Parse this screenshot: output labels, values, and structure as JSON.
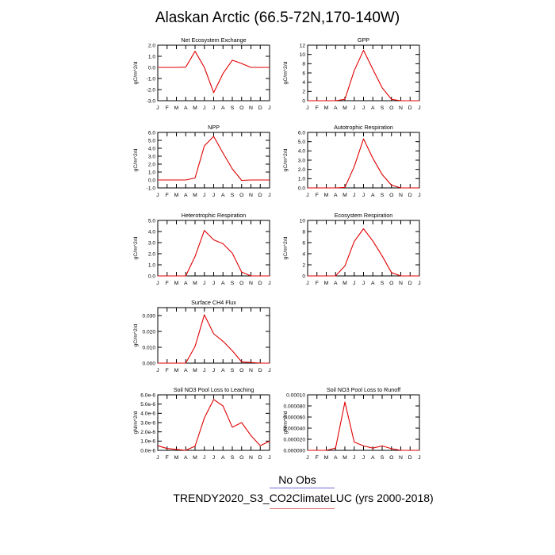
{
  "figure": {
    "title": "Alaskan Arctic (66.5-72N,170-140W)",
    "legend": {
      "obs_label": "No Obs",
      "model_label": "TRENDY2020_S3_CO2ClimateLUC (yrs 2000-2018)"
    }
  },
  "colors": {
    "series": "#e00000",
    "axis": "#000000"
  },
  "chart_data": [
    {
      "type": "line",
      "title": "Net Ecosystem Exchange",
      "ylabel": "gC/m^2/d",
      "x": [
        "J",
        "F",
        "M",
        "A",
        "M",
        "J",
        "J",
        "A",
        "S",
        "O",
        "N",
        "D",
        "J"
      ],
      "y": [
        0.0,
        0.0,
        0.0,
        0.02,
        1.45,
        0.0,
        -2.28,
        -0.55,
        0.65,
        0.35,
        0.0,
        0.0,
        0.0
      ],
      "ylim": [
        -3.0,
        2.0
      ],
      "yticks": [
        -3.0,
        -2.0,
        -1.0,
        0.0,
        1.0,
        2.0
      ],
      "ytick_labels": [
        "-3.0",
        "-2.0",
        "-1.0",
        "0.0",
        "1.0",
        "2.0"
      ]
    },
    {
      "type": "line",
      "title": "GPP",
      "ylabel": "gC/m^2/d",
      "x": [
        "J",
        "F",
        "M",
        "A",
        "M",
        "J",
        "J",
        "A",
        "S",
        "O",
        "N",
        "D",
        "J"
      ],
      "y": [
        0.0,
        0.0,
        0.0,
        0.0,
        0.3,
        6.5,
        10.9,
        6.8,
        2.8,
        0.3,
        0.0,
        0.0,
        0.0
      ],
      "ylim": [
        0,
        12
      ],
      "yticks": [
        0,
        2,
        4,
        6,
        8,
        10,
        12
      ],
      "ytick_labels": [
        "0",
        "2",
        "4",
        "6",
        "8",
        "10",
        "12"
      ]
    },
    {
      "type": "line",
      "title": "NPP",
      "ylabel": "gC/m^2/d",
      "x": [
        "J",
        "F",
        "M",
        "A",
        "M",
        "J",
        "J",
        "A",
        "S",
        "O",
        "N",
        "D",
        "J"
      ],
      "y": [
        0.0,
        0.0,
        0.0,
        0.0,
        0.25,
        4.3,
        5.5,
        3.4,
        1.4,
        -0.05,
        0.0,
        0.0,
        0.0
      ],
      "ylim": [
        -1.0,
        6.0
      ],
      "yticks": [
        -1.0,
        0.0,
        1.0,
        2.0,
        3.0,
        4.0,
        5.0,
        6.0
      ],
      "ytick_labels": [
        "-1.0",
        "0.0",
        "1.0",
        "2.0",
        "3.0",
        "4.0",
        "5.0",
        "6.0"
      ]
    },
    {
      "type": "line",
      "title": "Autotrophic Respiration",
      "ylabel": "gC/m^2/d",
      "x": [
        "J",
        "F",
        "M",
        "A",
        "M",
        "J",
        "J",
        "A",
        "S",
        "O",
        "N",
        "D",
        "J"
      ],
      "y": [
        0.0,
        0.0,
        0.0,
        0.0,
        0.05,
        2.3,
        5.3,
        3.2,
        1.45,
        0.3,
        0.0,
        0.0,
        0.0
      ],
      "ylim": [
        0.0,
        6.0
      ],
      "yticks": [
        0.0,
        1.0,
        2.0,
        3.0,
        4.0,
        5.0,
        6.0
      ],
      "ytick_labels": [
        "0.0",
        "1.0",
        "2.0",
        "3.0",
        "4.0",
        "5.0",
        "6.0"
      ]
    },
    {
      "type": "line",
      "title": "Heterotrophic Respiration",
      "ylabel": "gC/m^2/d",
      "x": [
        "J",
        "F",
        "M",
        "A",
        "M",
        "J",
        "J",
        "A",
        "S",
        "O",
        "N",
        "D",
        "J"
      ],
      "y": [
        0.0,
        0.0,
        0.0,
        0.0,
        1.75,
        4.1,
        3.25,
        2.9,
        2.05,
        0.35,
        0.0,
        0.0,
        0.0
      ],
      "ylim": [
        0.0,
        5.0
      ],
      "yticks": [
        0.0,
        1.0,
        2.0,
        3.0,
        4.0,
        5.0
      ],
      "ytick_labels": [
        "0.0",
        "1.0",
        "2.0",
        "3.0",
        "4.0",
        "5.0"
      ]
    },
    {
      "type": "line",
      "title": "Ecosystem Respiration",
      "ylabel": "gC/m^2/d",
      "x": [
        "J",
        "F",
        "M",
        "A",
        "M",
        "J",
        "J",
        "A",
        "S",
        "O",
        "N",
        "D",
        "J"
      ],
      "y": [
        0.0,
        0.0,
        0.0,
        0.0,
        1.8,
        6.2,
        8.5,
        6.3,
        3.6,
        0.6,
        0.0,
        0.0,
        0.0
      ],
      "ylim": [
        0,
        10
      ],
      "yticks": [
        0,
        2,
        4,
        6,
        8,
        10
      ],
      "ytick_labels": [
        "0",
        "2",
        "4",
        "6",
        "8",
        "10"
      ]
    },
    {
      "type": "line",
      "title": "Surface CH4 Flux",
      "ylabel": "gC/m^2/d",
      "x": [
        "J",
        "F",
        "M",
        "A",
        "M",
        "J",
        "J",
        "A",
        "S",
        "O",
        "N",
        "D",
        "J"
      ],
      "y": [
        0.0,
        0.0,
        0.0,
        0.0,
        0.0105,
        0.0305,
        0.0185,
        0.0138,
        0.0078,
        0.0008,
        0.0004,
        0.0,
        0.0
      ],
      "ylim": [
        0.0,
        0.035
      ],
      "yticks": [
        0.0,
        0.01,
        0.02,
        0.03
      ],
      "ytick_labels": [
        "0.000",
        "0.010",
        "0.020",
        "0.030"
      ]
    },
    {
      "type": "line",
      "title": "Soil NO3 Pool Loss to Leaching",
      "ylabel": "gN/m^2/d",
      "x": [
        "J",
        "F",
        "M",
        "A",
        "M",
        "J",
        "J",
        "A",
        "S",
        "O",
        "N",
        "D",
        "J"
      ],
      "y": [
        5e-07,
        2e-07,
        1e-07,
        0.0,
        4.5e-07,
        3.5e-06,
        5.5e-06,
        4.8e-06,
        2.5e-06,
        3e-06,
        1.6e-06,
        5e-07,
        1e-06
      ],
      "ylim": [
        0.0,
        6e-06
      ],
      "yticks": [
        0.0,
        1e-06,
        2e-06,
        3e-06,
        4e-06,
        5e-06,
        6e-06
      ],
      "ytick_labels": [
        "0.0e-6",
        "1.0e-6",
        "2.0e-6",
        "3.0e-6",
        "4.0e-6",
        "5.0e-6",
        "6.0e-6"
      ]
    },
    {
      "type": "line",
      "title": "Soil NO3 Pool Loss to Runoff",
      "ylabel": "gN/m^2/d",
      "x": [
        "J",
        "F",
        "M",
        "A",
        "M",
        "J",
        "J",
        "A",
        "S",
        "O",
        "N",
        "D",
        "J"
      ],
      "y": [
        0.0,
        0.0,
        0.0,
        4e-06,
        8.7e-05,
        1.5e-05,
        8e-06,
        4e-06,
        8e-06,
        3e-06,
        0.0,
        0.0,
        0.0
      ],
      "ylim": [
        0.0,
        0.0001
      ],
      "yticks": [
        0.0,
        2e-05,
        4e-05,
        6e-05,
        8e-05,
        0.0001
      ],
      "ytick_labels": [
        "0.000000",
        "0.000020",
        "0.000040",
        "0.000060",
        "0.000080",
        "0.00010"
      ]
    }
  ]
}
